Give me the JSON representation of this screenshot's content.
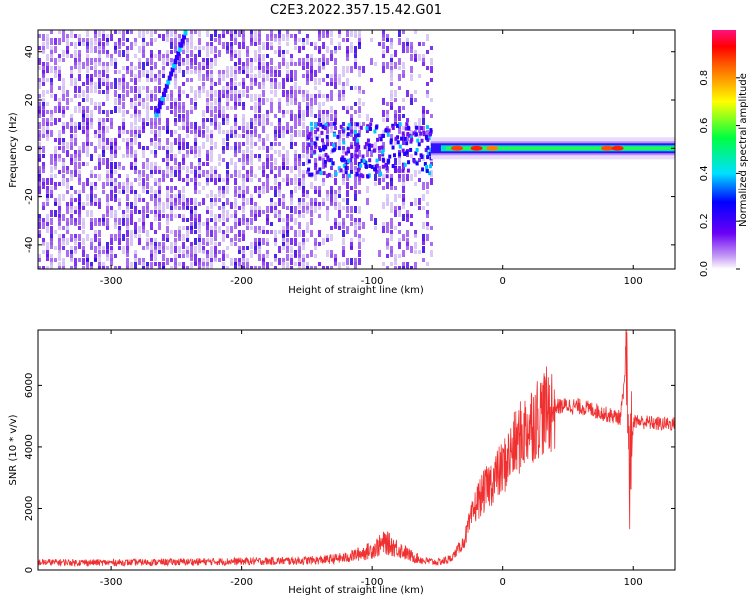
{
  "title": "C2E3.2022.357.15.42.G01",
  "chart_data": [
    {
      "type": "heatmap",
      "xlabel": "Height of straight line (km)",
      "ylabel": "Frequency (Hz)",
      "xlim": [
        -356,
        132
      ],
      "ylim": [
        -50,
        49
      ],
      "xticks": [
        -300,
        -200,
        -100,
        0,
        100
      ],
      "yticks": [
        -40,
        -20,
        0,
        20,
        40
      ],
      "colorbar": {
        "label": "Normalized spectral amplitude",
        "range": [
          0.0,
          1.0
        ],
        "ticks": [
          0.0,
          0.2,
          0.4,
          0.6,
          0.8
        ]
      },
      "features": {
        "broadband_noise_x": [
          -356,
          -55
        ],
        "carrier_line_x": [
          -55,
          132
        ],
        "carrier_line_freq_hz": 0,
        "drifting_tone": {
          "x": [
            -265,
            -243
          ],
          "freq_hz": [
            14,
            48
          ]
        }
      }
    },
    {
      "type": "line",
      "xlabel": "Height of straight line (km)",
      "ylabel": "SNR (10 * v/v)",
      "xlim": [
        -356,
        132
      ],
      "ylim": [
        0,
        7800
      ],
      "xticks": [
        -300,
        -200,
        -100,
        0,
        100
      ],
      "yticks": [
        0,
        2000,
        4000,
        6000
      ],
      "color": "#f03030",
      "profile": {
        "x": [
          -356,
          -300,
          -200,
          -160,
          -140,
          -120,
          -100,
          -90,
          -80,
          -70,
          -60,
          -50,
          -40,
          -30,
          -20,
          -10,
          0,
          10,
          20,
          30,
          40,
          50,
          60,
          70,
          80,
          90,
          95,
          97,
          100,
          110,
          120,
          132
        ],
        "y": [
          250,
          240,
          280,
          300,
          320,
          400,
          650,
          900,
          700,
          450,
          300,
          250,
          350,
          900,
          2200,
          2800,
          3300,
          4100,
          4700,
          5100,
          5300,
          5350,
          5300,
          5200,
          5050,
          4950,
          6500,
          2000,
          4850,
          4800,
          4750,
          4750
        ]
      }
    }
  ]
}
